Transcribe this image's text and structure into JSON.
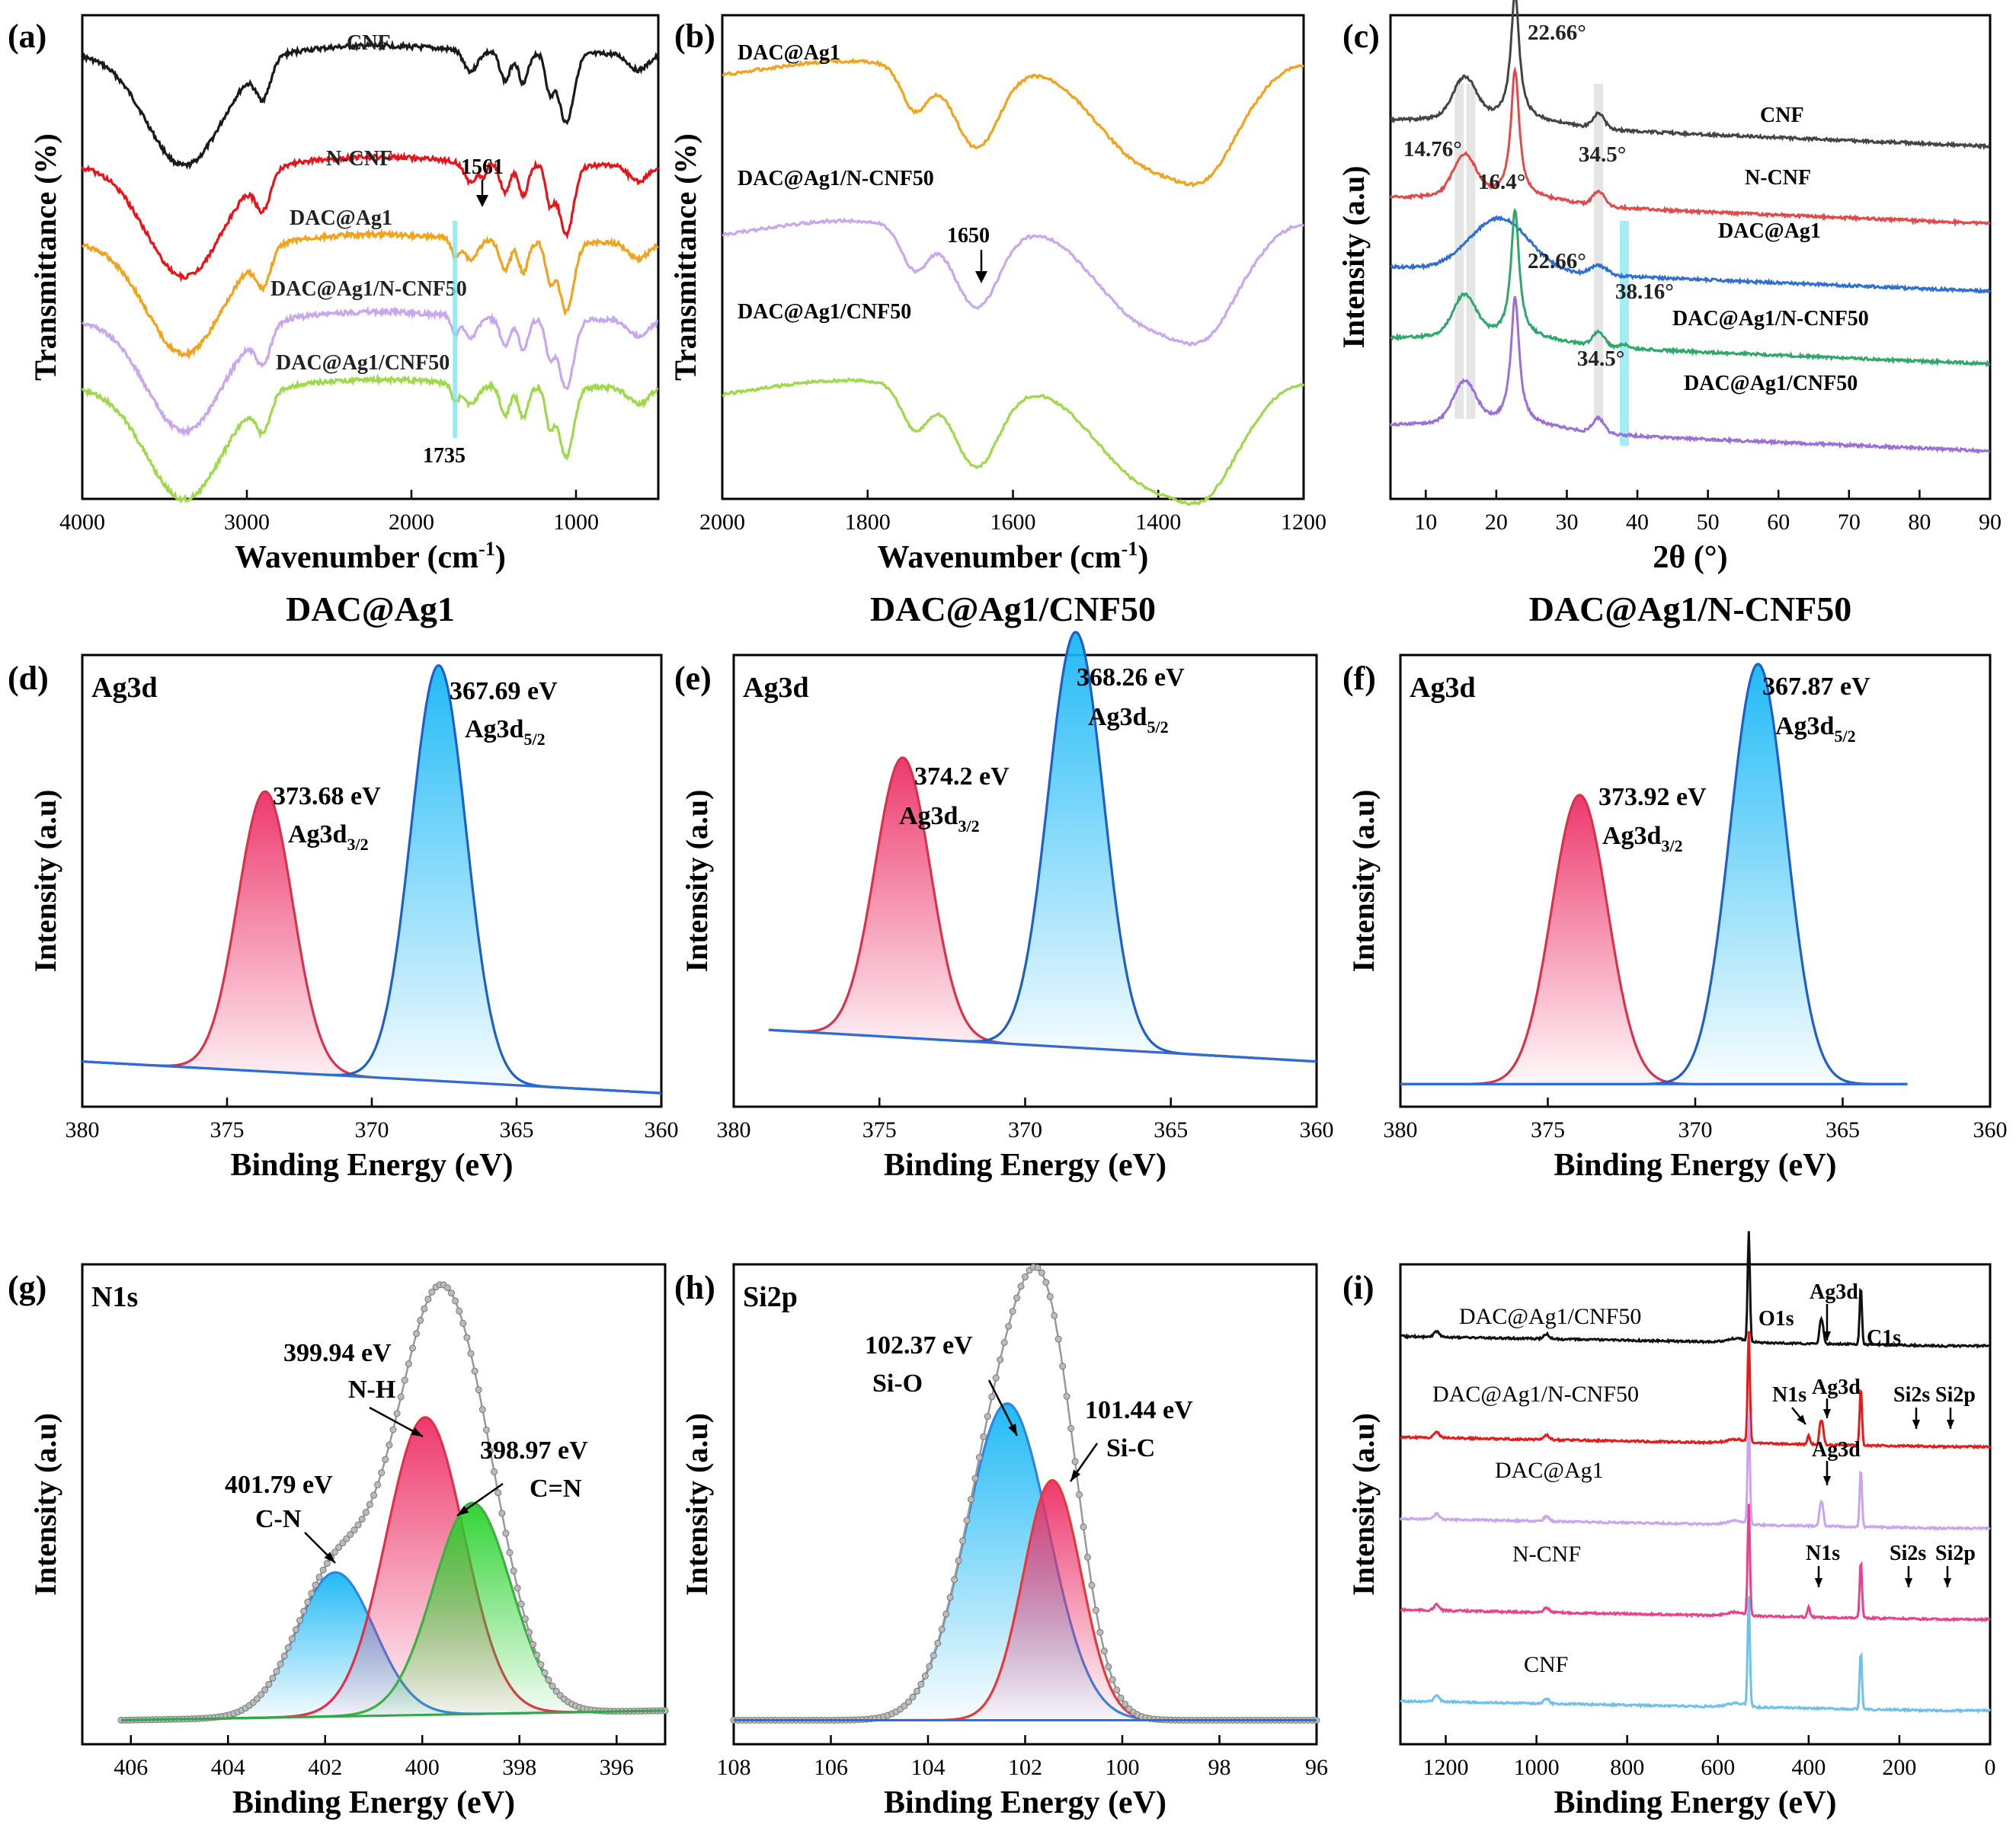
{
  "colors": {
    "black": "#1a1a1a",
    "red": "#e8141a",
    "orange": "#f2a21b",
    "lilac": "#c9a7ee",
    "lime": "#9ed94a",
    "xrd_gray": "#444444",
    "xrd_red": "#e24a4a",
    "xrd_blue": "#2f6fd4",
    "xrd_green": "#2ea86a",
    "xrd_purple": "#9a6fd6",
    "blue_peak": "#1f5fc8",
    "red_peak": "#d8334b",
    "green_peak": "#3cb043",
    "baseline": "#2a6fd6",
    "sv_black": "#111111",
    "sv_red": "#e51b1b",
    "sv_lilac": "#c9a4f0",
    "sv_pink": "#e8418e",
    "sv_sky": "#6ec1ee",
    "highlight_cyan": "#7fe6f0",
    "highlight_gray": "#cfcfcf"
  },
  "chart_data": [
    {
      "panel": "(a)",
      "type": "line",
      "title": "DAC@Ag1",
      "xlabel": "Wavenumber (cm",
      "xlabel_sup": "-1",
      "xlabel_end": ")",
      "ylabel": "Transmittance (%)",
      "xlim": [
        4000,
        500
      ],
      "xticks": [
        4000,
        3000,
        2000,
        1000
      ],
      "series": [
        {
          "name": "CNF",
          "color": "black",
          "offset": 0.92
        },
        {
          "name": "N-CNF",
          "color": "red",
          "offset": 0.69
        },
        {
          "name": "DAC@Ag1",
          "color": "orange",
          "offset": 0.53
        },
        {
          "name": "DAC@Ag1/N-CNF50",
          "color": "lilac",
          "offset": 0.37
        },
        {
          "name": "DAC@Ag1/CNF50",
          "color": "lime",
          "offset": 0.23
        }
      ],
      "annotations": [
        {
          "text": "1561",
          "x": 1561
        },
        {
          "text": "1735",
          "x": 1735
        }
      ]
    },
    {
      "panel": "(b)",
      "type": "line",
      "title": "DAC@Ag1/CNF50",
      "xlabel": "Wavenumber (cm",
      "xlabel_sup": "-1",
      "xlabel_end": ")",
      "ylabel": "Transmittance (%)",
      "xlim": [
        2000,
        1200
      ],
      "xticks": [
        2000,
        1800,
        1600,
        1400,
        1200
      ],
      "series": [
        {
          "name": "DAC@Ag1",
          "color": "orange",
          "offset": 0.86
        },
        {
          "name": "DAC@Ag1/N-CNF50",
          "color": "lilac",
          "offset": 0.53
        },
        {
          "name": "DAC@Ag1/CNF50",
          "color": "lime",
          "offset": 0.2
        }
      ],
      "annotations": [
        {
          "text": "1650",
          "x": 1650
        }
      ]
    },
    {
      "panel": "(c)",
      "type": "line",
      "title": "DAC@Ag1/N-CNF50",
      "xlabel": "2θ (°)",
      "ylabel": "Intensity (a.u)",
      "xlim": [
        5,
        90
      ],
      "xticks": [
        10,
        20,
        30,
        40,
        50,
        60,
        70,
        80,
        90
      ],
      "series": [
        {
          "name": "CNF",
          "color": "xrd_gray",
          "offset": 0.78
        },
        {
          "name": "N-CNF",
          "color": "xrd_red",
          "offset": 0.62
        },
        {
          "name": "DAC@Ag1",
          "color": "xrd_blue",
          "offset": 0.48
        },
        {
          "name": "DAC@Ag1/N-CNF50",
          "color": "xrd_green",
          "offset": 0.33
        },
        {
          "name": "DAC@Ag1/CNF50",
          "color": "xrd_purple",
          "offset": 0.15
        }
      ],
      "peaks_labels": [
        "22.66°",
        "14.76°",
        "16.4°",
        "34.5°",
        "22.66°",
        "38.16°",
        "34.5°"
      ]
    },
    {
      "panel": "(d)",
      "type": "area",
      "label": "Ag3d",
      "xlabel": "Binding Energy (eV)",
      "ylabel": "Intensity (a.u)",
      "xlim": [
        380,
        360
      ],
      "xticks": [
        380,
        375,
        370,
        365,
        360
      ],
      "peaks": [
        {
          "center": 373.68,
          "label": "373.68 eV",
          "sub": "Ag3d",
          "sub_idx": "3/2",
          "color": "red_peak",
          "height": 0.62,
          "width": 0.95
        },
        {
          "center": 367.69,
          "label": "367.69 eV",
          "sub": "Ag3d",
          "sub_idx": "5/2",
          "color": "blue_peak",
          "height": 0.92,
          "width": 0.95
        }
      ],
      "baseline": [
        0.1,
        0.03
      ]
    },
    {
      "panel": "(e)",
      "type": "area",
      "label": "Ag3d",
      "xlabel": "Binding Energy (eV)",
      "ylabel": "Intensity (a.u)",
      "xlim": [
        380,
        360
      ],
      "xticks": [
        380,
        375,
        370,
        365,
        360
      ],
      "peaks": [
        {
          "center": 374.2,
          "label": "374.2 eV",
          "sub": "Ag3d",
          "sub_idx": "3/2",
          "color": "red_peak",
          "height": 0.62,
          "width": 0.95
        },
        {
          "center": 368.26,
          "label": "368.26 eV",
          "sub": "Ag3d",
          "sub_idx": "5/2",
          "color": "blue_peak",
          "height": 0.92,
          "width": 0.95
        }
      ],
      "baseline": [
        0.17,
        0.1
      ],
      "data_range": [
        378.8,
        360
      ]
    },
    {
      "panel": "(f)",
      "type": "area",
      "label": "Ag3d",
      "xlabel": "Binding Energy (eV)",
      "ylabel": "Intensity (a.u)",
      "xlim": [
        380,
        360
      ],
      "xticks": [
        380,
        375,
        370,
        365,
        360
      ],
      "peaks": [
        {
          "center": 373.92,
          "label": "373.92 eV",
          "sub": "Ag3d",
          "sub_idx": "3/2",
          "color": "red_peak",
          "height": 0.64,
          "width": 0.95
        },
        {
          "center": 367.87,
          "label": "367.87 eV",
          "sub": "Ag3d",
          "sub_idx": "5/2",
          "color": "blue_peak",
          "height": 0.93,
          "width": 0.95
        }
      ],
      "baseline": [
        0.05,
        0.05
      ],
      "data_range": [
        380,
        362.8
      ]
    },
    {
      "panel": "(g)",
      "type": "area",
      "label": "N1s",
      "xlabel": "Binding Energy (eV)",
      "ylabel": "Intensity (a.u)",
      "xlim": [
        407,
        395
      ],
      "xticks": [
        406,
        404,
        402,
        400,
        398,
        396
      ],
      "peaks": [
        {
          "center": 401.79,
          "label": "401.79 eV",
          "sub": "C-N",
          "color": "#2f86e0",
          "height": 0.3,
          "width": 0.8
        },
        {
          "center": 399.94,
          "label": "399.94 eV",
          "sub": "N-H",
          "color": "#e0304a",
          "height": 0.62,
          "width": 0.8
        },
        {
          "center": 398.97,
          "label": "398.97 eV",
          "sub": "C=N",
          "color": "green_peak",
          "height": 0.44,
          "width": 0.8
        }
      ],
      "baseline": [
        0.05,
        0.07
      ],
      "data_range": [
        406.2,
        395
      ]
    },
    {
      "panel": "(h)",
      "type": "area",
      "label": "Si2p",
      "xlabel": "Binding Energy (eV)",
      "ylabel": "Intensity (a.u)",
      "xlim": [
        108,
        96
      ],
      "xticks": [
        108,
        106,
        104,
        102,
        100,
        98,
        96
      ],
      "peaks": [
        {
          "center": 102.37,
          "label": "102.37 eV",
          "sub": "Si-O",
          "color": "#2f86e0",
          "height": 0.66,
          "width": 0.85
        },
        {
          "center": 101.44,
          "label": "101.44 eV",
          "sub": "Si-C",
          "color": "#e53a3a",
          "height": 0.5,
          "width": 0.6
        }
      ],
      "baseline": [
        0.05,
        0.05
      ]
    },
    {
      "panel": "(i)",
      "type": "line",
      "label": "",
      "xlabel": "Binding Energy (eV)",
      "ylabel": "Intensity (a.u)",
      "xlim": [
        1300,
        0
      ],
      "xticks": [
        1200,
        1000,
        800,
        600,
        400,
        200,
        0
      ],
      "series": [
        {
          "name": "DAC@Ag1/CNF50",
          "color": "sv_black",
          "offset": 0.83
        },
        {
          "name": "DAC@Ag1/N-CNF50",
          "color": "sv_red",
          "offset": 0.62
        },
        {
          "name": "DAC@Ag1",
          "color": "sv_lilac",
          "offset": 0.45
        },
        {
          "name": "N-CNF",
          "color": "sv_pink",
          "offset": 0.26
        },
        {
          "name": "CNF",
          "color": "sv_sky",
          "offset": 0.07
        }
      ],
      "annotations": [
        "O1s",
        "Ag3d",
        "C1s",
        "N1s",
        "Ag3d",
        "Si2s",
        "Si2p",
        "Ag3d",
        "N1s",
        "Si2s",
        "Si2p"
      ]
    }
  ]
}
